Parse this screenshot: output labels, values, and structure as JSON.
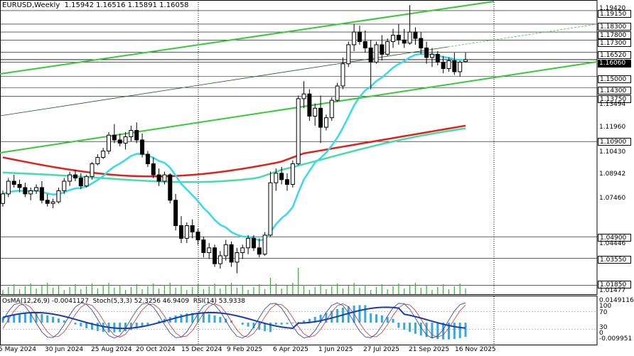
{
  "header": {
    "symbol": "EURUSD",
    "timeframe": "Weekly",
    "ohlc": "1.15942 1.16516 1.15891 1.16058"
  },
  "indicator_header": {
    "osma": "OsMA(12,26,9) -0.0041127",
    "stoch": "Stoch(5,3,3) 52.3256 46.9409",
    "rsi": "RSI(14) 53.9338"
  },
  "price_axis": [
    {
      "label": "1.19420",
      "style": "plain"
    },
    {
      "label": "1.19150",
      "style": "box"
    },
    {
      "label": "1.18300",
      "style": "box"
    },
    {
      "label": "1.17800",
      "style": "box"
    },
    {
      "label": "1.17300",
      "style": "box"
    },
    {
      "label": "1.16520",
      "style": "box"
    },
    {
      "label": "1.16060",
      "style": "current"
    },
    {
      "label": "1.15000",
      "style": "box"
    },
    {
      "label": "1.14300",
      "style": "box"
    },
    {
      "label": "1.13750",
      "style": "box"
    },
    {
      "label": "1.13494",
      "style": "plain"
    },
    {
      "label": "1.11960",
      "style": "plain"
    },
    {
      "label": "1.10900",
      "style": "box"
    },
    {
      "label": "1.10430",
      "style": "plain"
    },
    {
      "label": "1.08942",
      "style": "plain"
    },
    {
      "label": "1.07460",
      "style": "plain"
    },
    {
      "label": "1.04900",
      "style": "box"
    },
    {
      "label": "1.04446",
      "style": "plain"
    },
    {
      "label": "1.03550",
      "style": "box"
    },
    {
      "label": "1.01850",
      "style": "box"
    },
    {
      "label": "1.01477",
      "style": "plain"
    }
  ],
  "indicator_axis": [
    "0.0149116",
    "100",
    "70",
    "30",
    "0",
    "-0.009951"
  ],
  "time_axis": [
    "5 May 2024",
    "30 Jun 2024",
    "25 Aug 2024",
    "20 Oct 2024",
    "15 Dec 2024",
    "9 Feb 2025",
    "6 Apr 2025",
    "1 Jun 2025",
    "27 Jul 2025",
    "21 Sep 2025",
    "16 Nov 2025"
  ],
  "colors": {
    "trend_green": "#33cc33",
    "ema_red": "#e0201a",
    "ema_cyan": "#33dde8",
    "ema_aqua": "#44ddaa",
    "osma_hist": "#33aadd",
    "rsi_line": "#1a3cb0",
    "stoch_main": "#1a3cb0",
    "stoch_signal": "#d03030",
    "volume": "#22bb22",
    "grid": "#000000",
    "current_price": "#000000"
  },
  "candles": [
    [
      1.07,
      1.078,
      1.068,
      1.076
    ],
    [
      1.076,
      1.086,
      1.074,
      1.084
    ],
    [
      1.084,
      1.088,
      1.08,
      1.082
    ],
    [
      1.082,
      1.085,
      1.077,
      1.08
    ],
    [
      1.08,
      1.083,
      1.074,
      1.076
    ],
    [
      1.076,
      1.08,
      1.072,
      1.078
    ],
    [
      1.078,
      1.082,
      1.076,
      1.08
    ],
    [
      1.08,
      1.084,
      1.07,
      1.072
    ],
    [
      1.072,
      1.076,
      1.068,
      1.07
    ],
    [
      1.07,
      1.073,
      1.067,
      1.071
    ],
    [
      1.071,
      1.08,
      1.07,
      1.078
    ],
    [
      1.078,
      1.086,
      1.076,
      1.084
    ],
    [
      1.084,
      1.09,
      1.081,
      1.088
    ],
    [
      1.088,
      1.091,
      1.084,
      1.086
    ],
    [
      1.086,
      1.089,
      1.079,
      1.081
    ],
    [
      1.081,
      1.088,
      1.08,
      1.087
    ],
    [
      1.087,
      1.096,
      1.085,
      1.095
    ],
    [
      1.095,
      1.101,
      1.094,
      1.099
    ],
    [
      1.099,
      1.105,
      1.098,
      1.103
    ],
    [
      1.103,
      1.115,
      1.101,
      1.113
    ],
    [
      1.113,
      1.12,
      1.108,
      1.11
    ],
    [
      1.11,
      1.114,
      1.106,
      1.108
    ],
    [
      1.108,
      1.115,
      1.104,
      1.112
    ],
    [
      1.112,
      1.119,
      1.109,
      1.116
    ],
    [
      1.116,
      1.121,
      1.108,
      1.11
    ],
    [
      1.11,
      1.114,
      1.099,
      1.101
    ],
    [
      1.101,
      1.103,
      1.093,
      1.095
    ],
    [
      1.095,
      1.099,
      1.086,
      1.088
    ],
    [
      1.088,
      1.092,
      1.081,
      1.084
    ],
    [
      1.084,
      1.09,
      1.082,
      1.088
    ],
    [
      1.088,
      1.089,
      1.07,
      1.072
    ],
    [
      1.072,
      1.076,
      1.053,
      1.056
    ],
    [
      1.056,
      1.062,
      1.045,
      1.048
    ],
    [
      1.048,
      1.058,
      1.045,
      1.056
    ],
    [
      1.056,
      1.06,
      1.048,
      1.052
    ],
    [
      1.052,
      1.054,
      1.044,
      1.047
    ],
    [
      1.047,
      1.049,
      1.036,
      1.039
    ],
    [
      1.039,
      1.045,
      1.035,
      1.042
    ],
    [
      1.042,
      1.044,
      1.03,
      1.032
    ],
    [
      1.032,
      1.04,
      1.029,
      1.037
    ],
    [
      1.037,
      1.047,
      1.034,
      1.044
    ],
    [
      1.044,
      1.046,
      1.03,
      1.033
    ],
    [
      1.033,
      1.042,
      1.026,
      1.039
    ],
    [
      1.039,
      1.044,
      1.035,
      1.042
    ],
    [
      1.042,
      1.05,
      1.038,
      1.048
    ],
    [
      1.048,
      1.05,
      1.04,
      1.042
    ],
    [
      1.042,
      1.048,
      1.036,
      1.038
    ],
    [
      1.038,
      1.052,
      1.037,
      1.05
    ],
    [
      1.05,
      1.09,
      1.049,
      1.083
    ],
    [
      1.083,
      1.092,
      1.078,
      1.089
    ],
    [
      1.089,
      1.093,
      1.082,
      1.085
    ],
    [
      1.085,
      1.089,
      1.078,
      1.082
    ],
    [
      1.082,
      1.097,
      1.08,
      1.095
    ],
    [
      1.095,
      1.138,
      1.094,
      1.136
    ],
    [
      1.136,
      1.147,
      1.13,
      1.139
    ],
    [
      1.139,
      1.142,
      1.122,
      1.125
    ],
    [
      1.125,
      1.133,
      1.119,
      1.13
    ],
    [
      1.13,
      1.138,
      1.108,
      1.118
    ],
    [
      1.118,
      1.126,
      1.116,
      1.124
    ],
    [
      1.124,
      1.137,
      1.122,
      1.135
    ],
    [
      1.135,
      1.146,
      1.134,
      1.144
    ],
    [
      1.144,
      1.162,
      1.142,
      1.158
    ],
    [
      1.158,
      1.172,
      1.156,
      1.17
    ],
    [
      1.17,
      1.183,
      1.166,
      1.178
    ],
    [
      1.178,
      1.182,
      1.17,
      1.172
    ],
    [
      1.172,
      1.179,
      1.165,
      1.168
    ],
    [
      1.168,
      1.173,
      1.142,
      1.159
    ],
    [
      1.159,
      1.172,
      1.158,
      1.17
    ],
    [
      1.17,
      1.176,
      1.16,
      1.164
    ],
    [
      1.164,
      1.174,
      1.163,
      1.172
    ],
    [
      1.172,
      1.18,
      1.168,
      1.176
    ],
    [
      1.176,
      1.183,
      1.17,
      1.173
    ],
    [
      1.173,
      1.18,
      1.168,
      1.171
    ],
    [
      1.171,
      1.195,
      1.17,
      1.178
    ],
    [
      1.178,
      1.181,
      1.17,
      1.174
    ],
    [
      1.174,
      1.178,
      1.164,
      1.168
    ],
    [
      1.168,
      1.172,
      1.158,
      1.162
    ],
    [
      1.162,
      1.168,
      1.156,
      1.164
    ],
    [
      1.164,
      1.166,
      1.157,
      1.159
    ],
    [
      1.159,
      1.163,
      1.152,
      1.155
    ],
    [
      1.155,
      1.162,
      1.153,
      1.16
    ],
    [
      1.16,
      1.165,
      1.151,
      1.153
    ],
    [
      1.153,
      1.16,
      1.15,
      1.159
    ],
    [
      1.1594,
      1.1652,
      1.1589,
      1.1606
    ]
  ]
}
